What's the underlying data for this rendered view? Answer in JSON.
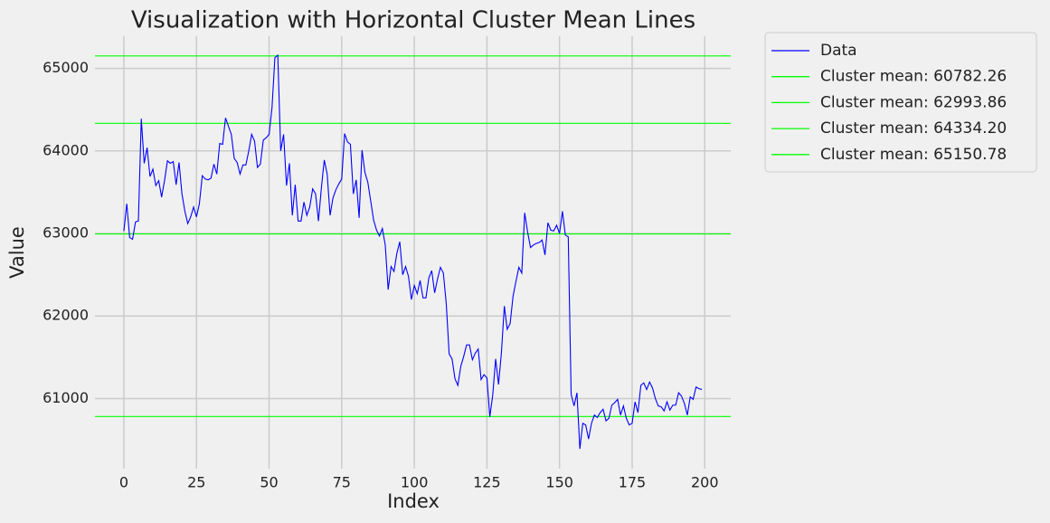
{
  "chart_data": {
    "type": "line",
    "title": "Visualization with Horizontal Cluster Mean Lines",
    "xlabel": "Index",
    "ylabel": "Value",
    "x": [
      0,
      1,
      2,
      3,
      4,
      5,
      6,
      7,
      8,
      9,
      10,
      11,
      12,
      13,
      14,
      15,
      16,
      17,
      18,
      19,
      20,
      21,
      22,
      23,
      24,
      25,
      26,
      27,
      28,
      29,
      30,
      31,
      32,
      33,
      34,
      35,
      36,
      37,
      38,
      39,
      40,
      41,
      42,
      43,
      44,
      45,
      46,
      47,
      48,
      49,
      50,
      51,
      52,
      53,
      54,
      55,
      56,
      57,
      58,
      59,
      60,
      61,
      62,
      63,
      64,
      65,
      66,
      67,
      68,
      69,
      70,
      71,
      72,
      73,
      74,
      75,
      76,
      77,
      78,
      79,
      80,
      81,
      82,
      83,
      84,
      85,
      86,
      87,
      88,
      89,
      90,
      91,
      92,
      93,
      94,
      95,
      96,
      97,
      98,
      99,
      100,
      101,
      102,
      103,
      104,
      105,
      106,
      107,
      108,
      109,
      110,
      111,
      112,
      113,
      114,
      115,
      116,
      117,
      118,
      119,
      120,
      121,
      122,
      123,
      124,
      125,
      126,
      127,
      128,
      129,
      130,
      131,
      132,
      133,
      134,
      135,
      136,
      137,
      138,
      139,
      140,
      141,
      142,
      143,
      144,
      145,
      146,
      147,
      148,
      149,
      150,
      151,
      152,
      153,
      154,
      155,
      156,
      157,
      158,
      159,
      160,
      161,
      162,
      163,
      164,
      165,
      166,
      167,
      168,
      169,
      170,
      171,
      172,
      173,
      174,
      175,
      176,
      177,
      178,
      179,
      180,
      181,
      182,
      183,
      184,
      185,
      186,
      187,
      188,
      189,
      190,
      191,
      192,
      193,
      194,
      195,
      196,
      197,
      198,
      199
    ],
    "series": [
      {
        "name": "Data",
        "color": "#0000ff",
        "values": [
          63030,
          63360,
          62950,
          62930,
          63140,
          63150,
          64390,
          63850,
          64040,
          63690,
          63780,
          63580,
          63640,
          63440,
          63640,
          63880,
          63850,
          63870,
          63590,
          63860,
          63480,
          63270,
          63120,
          63200,
          63320,
          63200,
          63360,
          63700,
          63660,
          63650,
          63670,
          63840,
          63720,
          64090,
          64080,
          64400,
          64300,
          64200,
          63910,
          63860,
          63720,
          63830,
          63830,
          64000,
          64200,
          64120,
          63800,
          63840,
          64130,
          64160,
          64200,
          64520,
          65130,
          65160,
          64000,
          64200,
          63580,
          63850,
          63220,
          63590,
          63150,
          63150,
          63380,
          63220,
          63320,
          63540,
          63480,
          63150,
          63550,
          63890,
          63720,
          63220,
          63430,
          63530,
          63600,
          63660,
          64210,
          64110,
          64080,
          63480,
          63650,
          63190,
          64010,
          63740,
          63620,
          63390,
          63160,
          63040,
          62970,
          63060,
          62860,
          62320,
          62600,
          62540,
          62760,
          62900,
          62500,
          62600,
          62480,
          62200,
          62370,
          62270,
          62430,
          62220,
          62220,
          62460,
          62550,
          62280,
          62450,
          62590,
          62520,
          62150,
          61540,
          61480,
          61240,
          61160,
          61390,
          61510,
          61650,
          61650,
          61470,
          61550,
          61600,
          61230,
          61290,
          61250,
          60780,
          61040,
          61480,
          61170,
          61560,
          62120,
          61840,
          61910,
          62240,
          62420,
          62590,
          62520,
          63250,
          63020,
          62830,
          62860,
          62880,
          62890,
          62920,
          62740,
          63130,
          63040,
          63030,
          63100,
          63000,
          63270,
          62980,
          62960,
          61050,
          60910,
          61070,
          60390,
          60700,
          60680,
          60510,
          60700,
          60800,
          60770,
          60830,
          60870,
          60730,
          60760,
          60920,
          60950,
          60990,
          60800,
          60910,
          60760,
          60680,
          60700,
          60960,
          60830,
          61160,
          61190,
          61110,
          61200,
          61130,
          61000,
          60910,
          60900,
          60850,
          60960,
          60860,
          60920,
          60920,
          61070,
          61030,
          60940,
          60800,
          61020,
          60990,
          61140,
          61120,
          61110
        ]
      }
    ],
    "hlines": [
      {
        "name": "Cluster mean: 60782.26",
        "value": 60782.26,
        "color": "#00ff00"
      },
      {
        "name": "Cluster mean: 62993.86",
        "value": 62993.86,
        "color": "#00ff00"
      },
      {
        "name": "Cluster mean: 64334.20",
        "value": 64334.2,
        "color": "#00ff00"
      },
      {
        "name": "Cluster mean: 65150.78",
        "value": 65150.78,
        "color": "#00ff00"
      }
    ],
    "xlim": [
      -9.95,
      208.95
    ],
    "ylim": [
      60150,
      65390
    ],
    "xticks": [
      0,
      25,
      50,
      75,
      100,
      125,
      150,
      175,
      200
    ],
    "yticks": [
      61000,
      62000,
      63000,
      64000,
      65000
    ],
    "grid": true,
    "legend": "outside upper right"
  }
}
